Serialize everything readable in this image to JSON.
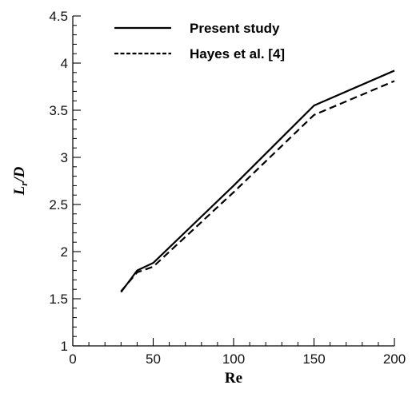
{
  "chart_data": {
    "type": "line",
    "title": "",
    "xlabel": "Re",
    "ylabel": {
      "main": "L",
      "sub": "r",
      "suffix": "/D"
    },
    "xlim": [
      0,
      200
    ],
    "ylim": [
      1,
      4.5
    ],
    "x_major_ticks": [
      0,
      50,
      100,
      150,
      200
    ],
    "y_major_ticks": [
      1,
      1.5,
      2,
      2.5,
      3,
      3.5,
      4,
      4.5
    ],
    "x_tick_labels": [
      "0",
      "50",
      "100",
      "150",
      "200"
    ],
    "y_tick_labels": [
      "1",
      "1.5",
      "2",
      "2.5",
      "3",
      "3.5",
      "4",
      "4.5"
    ],
    "grid": false,
    "legend_position": "top-left",
    "series": [
      {
        "name": "Present study",
        "style": "solid",
        "color": "#000000",
        "x": [
          30,
          40,
          50,
          100,
          150,
          200
        ],
        "y": [
          1.57,
          1.8,
          1.88,
          2.7,
          3.55,
          3.92
        ]
      },
      {
        "name": "Hayes et al. [4]",
        "style": "dashed",
        "color": "#000000",
        "x": [
          30,
          40,
          50,
          100,
          150,
          200
        ],
        "y": [
          1.58,
          1.78,
          1.84,
          2.63,
          3.45,
          3.81
        ]
      }
    ]
  }
}
